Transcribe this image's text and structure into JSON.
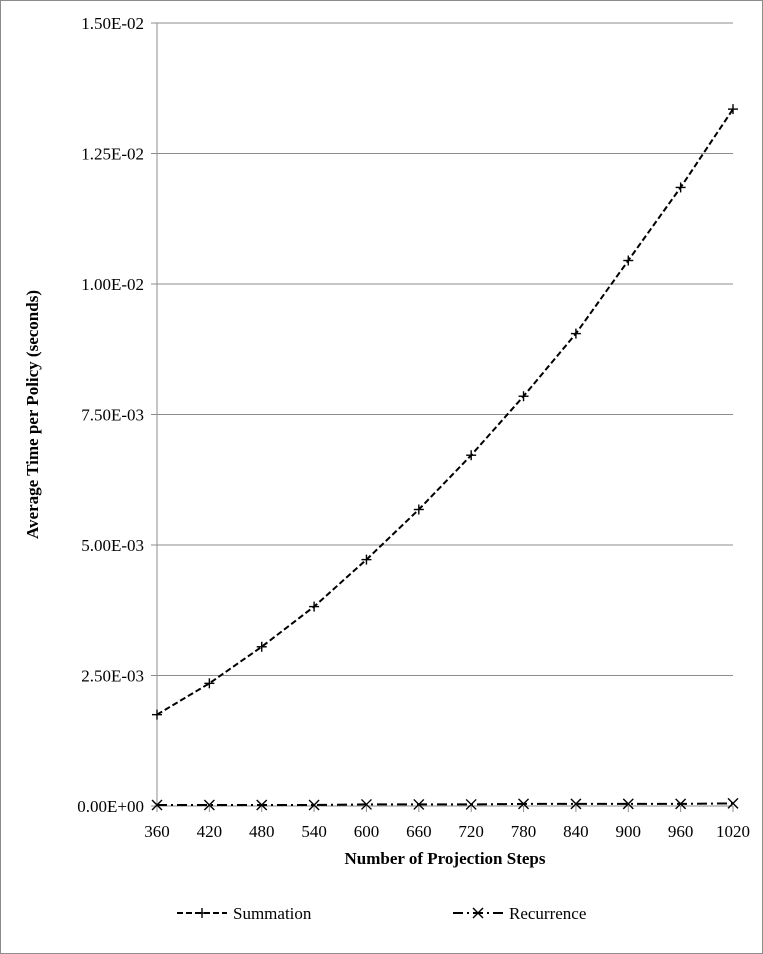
{
  "chart_data": {
    "type": "line",
    "title": "",
    "xlabel": "Number of Projection Steps",
    "ylabel": "Average Time per Policy (seconds)",
    "x": [
      360,
      420,
      480,
      540,
      600,
      660,
      720,
      780,
      840,
      900,
      960,
      1020
    ],
    "x_tick_labels": [
      "360",
      "420",
      "480",
      "540",
      "600",
      "660",
      "720",
      "780",
      "840",
      "900",
      "960",
      "1020"
    ],
    "ylim": [
      0,
      0.015
    ],
    "y_ticks": [
      0,
      0.0025,
      0.005,
      0.0075,
      0.01,
      0.0125,
      0.015
    ],
    "y_tick_labels": [
      "0.00E+00",
      "2.50E-03",
      "5.00E-03",
      "7.50E-03",
      "1.00E-02",
      "1.25E-02",
      "1.50E-02"
    ],
    "grid": "horizontal",
    "legend_position": "bottom",
    "series": [
      {
        "name": "Summation",
        "marker": "plus",
        "line_style": "dashed",
        "color": "#000000",
        "values": [
          0.00175,
          0.00235,
          0.00305,
          0.00382,
          0.00472,
          0.00568,
          0.00672,
          0.00785,
          0.00905,
          0.01045,
          0.01185,
          0.01335
        ]
      },
      {
        "name": "Recurrence",
        "marker": "x",
        "line_style": "dash-dot",
        "color": "#000000",
        "values": [
          2e-05,
          2e-05,
          2e-05,
          2e-05,
          3e-05,
          3e-05,
          3e-05,
          4e-05,
          4e-05,
          4e-05,
          4e-05,
          5e-05
        ]
      }
    ]
  }
}
